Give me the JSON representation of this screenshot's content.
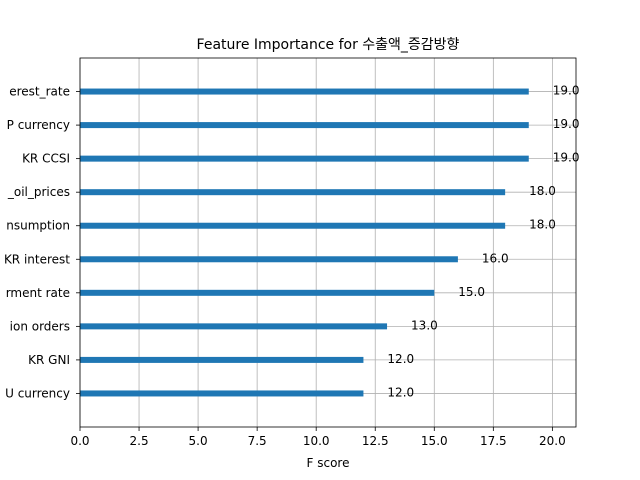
{
  "chart_data": {
    "type": "bar",
    "orientation": "horizontal",
    "title": "Feature Importance for 수출액_증감방향",
    "xlabel": "F score",
    "ylabel": "",
    "xlim": [
      0,
      21
    ],
    "xticks": [
      "0.0",
      "2.5",
      "5.0",
      "7.5",
      "10.0",
      "12.5",
      "15.0",
      "17.5",
      "20.0"
    ],
    "grid": true,
    "categories": [
      "U currency",
      "KR GNI",
      "ion orders",
      "rment rate",
      "KR interest",
      "nsumption",
      "_oil_prices",
      "KR CCSI",
      "P currency",
      "erest_rate"
    ],
    "values": [
      12.0,
      12.0,
      13.0,
      15.0,
      16.0,
      18.0,
      18.0,
      19.0,
      19.0,
      19.0
    ],
    "value_labels": [
      "12.0",
      "12.0",
      "13.0",
      "15.0",
      "16.0",
      "18.0",
      "18.0",
      "19.0",
      "19.0",
      "19.0"
    ],
    "bar_color": "#1f77b4"
  }
}
